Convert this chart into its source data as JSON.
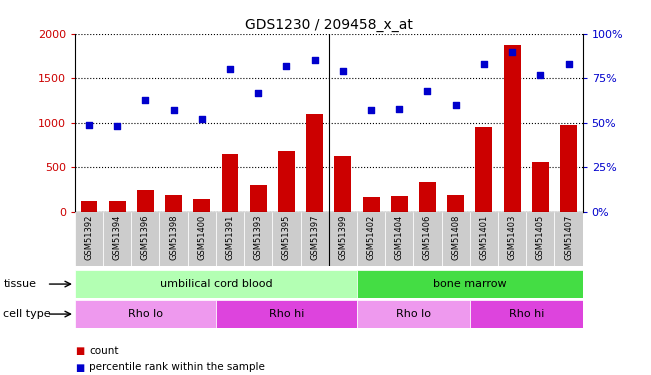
{
  "title": "GDS1230 / 209458_x_at",
  "samples": [
    "GSM51392",
    "GSM51394",
    "GSM51396",
    "GSM51398",
    "GSM51400",
    "GSM51391",
    "GSM51393",
    "GSM51395",
    "GSM51397",
    "GSM51399",
    "GSM51402",
    "GSM51404",
    "GSM51406",
    "GSM51408",
    "GSM51401",
    "GSM51403",
    "GSM51405",
    "GSM51407"
  ],
  "counts": [
    120,
    120,
    250,
    190,
    150,
    650,
    300,
    680,
    1100,
    630,
    170,
    175,
    340,
    195,
    950,
    1870,
    565,
    975
  ],
  "percentiles": [
    49,
    48,
    63,
    57,
    52,
    80,
    67,
    82,
    85,
    79,
    57,
    58,
    68,
    60,
    83,
    90,
    77,
    83
  ],
  "bar_color": "#cc0000",
  "dot_color": "#0000cc",
  "ylim_left": [
    0,
    2000
  ],
  "ylim_right": [
    0,
    100
  ],
  "yticks_left": [
    0,
    500,
    1000,
    1500,
    2000
  ],
  "ytick_labels_left": [
    "0",
    "500",
    "1000",
    "1500",
    "2000"
  ],
  "yticks_right": [
    0,
    25,
    50,
    75,
    100
  ],
  "ytick_labels_right": [
    "0%",
    "25%",
    "50%",
    "75%",
    "100%"
  ],
  "tissue_labels": [
    {
      "label": "umbilical cord blood",
      "start": 0,
      "end": 10,
      "color": "#b3ffb3"
    },
    {
      "label": "bone marrow",
      "start": 10,
      "end": 18,
      "color": "#44dd44"
    }
  ],
  "celltype_labels": [
    {
      "label": "Rho lo",
      "start": 0,
      "end": 5,
      "color": "#ee99ee"
    },
    {
      "label": "Rho hi",
      "start": 5,
      "end": 10,
      "color": "#dd44dd"
    },
    {
      "label": "Rho lo",
      "start": 10,
      "end": 14,
      "color": "#ee99ee"
    },
    {
      "label": "Rho hi",
      "start": 14,
      "end": 18,
      "color": "#dd44dd"
    }
  ],
  "legend_count_color": "#cc0000",
  "legend_dot_color": "#0000cc",
  "tissue_row_label": "tissue",
  "celltype_row_label": "cell type",
  "tick_label_color_left": "#cc0000",
  "tick_label_color_right": "#0000cc",
  "xticklabel_bg": "#cccccc",
  "separator_after_index": 9
}
